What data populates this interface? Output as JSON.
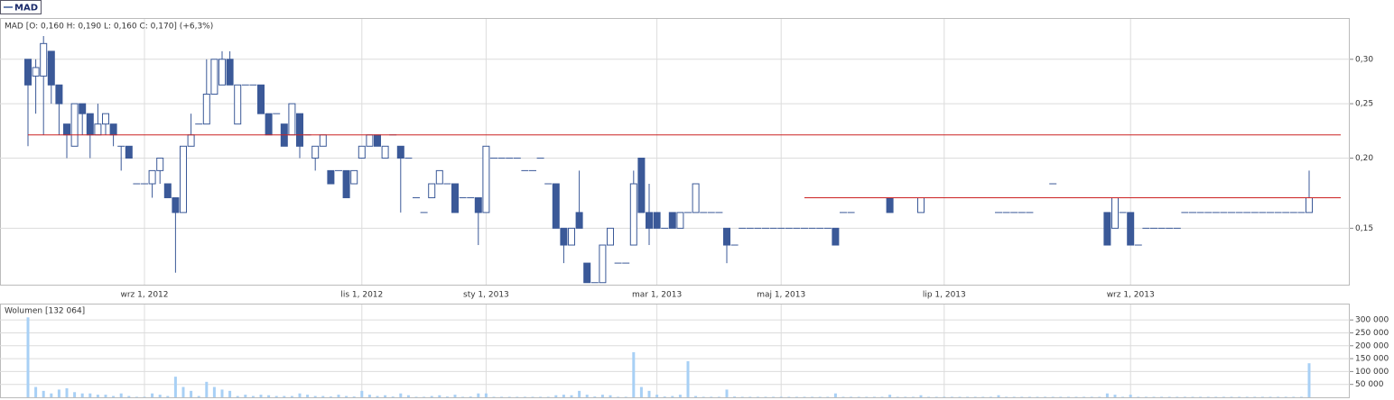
{
  "chart_data": {
    "type": "candlestick",
    "legend": "MAD",
    "title": "MAD [O: 0,160  H: 0,190  L: 0,160  C: 0,170] (+6,3%)",
    "volume_title": "Wolumen [132 064]",
    "log_scale": true,
    "grid": true,
    "up_color": "#ffffff",
    "down_color": "#3b5998",
    "edge_color": "#3b5998",
    "volume_color": "#a8d0f5",
    "categories": [
      null,
      null,
      null,
      null,
      null,
      null,
      null,
      null,
      null,
      null,
      null,
      null,
      null,
      null,
      null,
      "wrz 1, 2012",
      null,
      null,
      null,
      null,
      null,
      null,
      null,
      null,
      null,
      null,
      null,
      null,
      null,
      null,
      null,
      null,
      null,
      null,
      null,
      null,
      null,
      null,
      null,
      null,
      null,
      null,
      null,
      "lis 1, 2012",
      null,
      null,
      null,
      null,
      null,
      null,
      null,
      null,
      null,
      null,
      null,
      null,
      null,
      null,
      null,
      "sty 1, 2013",
      null,
      null,
      null,
      null,
      null,
      null,
      null,
      null,
      null,
      null,
      null,
      null,
      null,
      null,
      null,
      null,
      null,
      null,
      null,
      null,
      null,
      "mar 1, 2013",
      null,
      null,
      null,
      null,
      null,
      null,
      null,
      null,
      null,
      null,
      null,
      null,
      null,
      null,
      null,
      "maj 1, 2013",
      null,
      null,
      null,
      null,
      null,
      null,
      null,
      null,
      null,
      null,
      null,
      null,
      null,
      null,
      null,
      null,
      null,
      null,
      null,
      null,
      "lip 1, 2013",
      null,
      null,
      null,
      null,
      null,
      null,
      null,
      null,
      null,
      null,
      null,
      null,
      null,
      null,
      null,
      null,
      null,
      null,
      null,
      null,
      null,
      null,
      null,
      "wrz 1, 2013",
      null,
      null,
      null,
      null,
      null,
      null,
      null,
      null,
      null,
      null,
      null,
      null,
      null,
      null,
      null,
      null,
      null,
      null,
      null,
      null,
      null,
      null,
      null
    ],
    "open": [
      0.3,
      0.28,
      0.28,
      0.31,
      0.27,
      0.23,
      0.21,
      0.25,
      0.24,
      0.22,
      0.23,
      0.23,
      0.21,
      0.21,
      0.18,
      0.18,
      0.18,
      0.19,
      0.18,
      0.17,
      0.16,
      0.21,
      0.23,
      0.23,
      0.26,
      0.27,
      0.3,
      0.23,
      0.27,
      0.27,
      0.27,
      0.24,
      0.24,
      0.23,
      0.22,
      0.24,
      0.22,
      0.2,
      0.21,
      0.19,
      0.19,
      0.19,
      0.18,
      0.2,
      0.21,
      0.22,
      0.2,
      0.22,
      0.21,
      0.2,
      0.17,
      0.16,
      0.17,
      0.18,
      0.18,
      0.18,
      0.17,
      0.17,
      0.17,
      0.16,
      0.2,
      0.2,
      0.2,
      0.2,
      0.19,
      0.19,
      0.2,
      0.18,
      0.18,
      0.15,
      0.14,
      0.16,
      0.13,
      0.12,
      0.12,
      0.14,
      0.13,
      0.13,
      0.14,
      0.2,
      0.16,
      0.16,
      0.15,
      0.16,
      0.15,
      0.16,
      0.16,
      0.16,
      0.16,
      0.16,
      0.15,
      0.14,
      0.15,
      0.15,
      0.15,
      0.15,
      0.15,
      0.15,
      0.15,
      0.15,
      0.15,
      0.15,
      0.15,
      0.15,
      0.15,
      0.16,
      0.16,
      0.17,
      0.17,
      0.17,
      0.17,
      0.17,
      0.17,
      0.17,
      0.17,
      0.16,
      0.17,
      0.17,
      0.17,
      0.17,
      0.17,
      0.17,
      0.17,
      0.17,
      0.17,
      0.16,
      0.16,
      0.16,
      0.16,
      0.16,
      0.17,
      0.17,
      0.18,
      0.17,
      0.17,
      0.17,
      0.17,
      0.17,
      0.17,
      0.16,
      0.15,
      0.16,
      0.16,
      0.14,
      0.15,
      0.15,
      0.15,
      0.15,
      0.15,
      0.16,
      0.16,
      0.16,
      0.16,
      0.16,
      0.16,
      0.16,
      0.16,
      0.16,
      0.16,
      0.16,
      0.16,
      0.16,
      0.16,
      0.16,
      0.16,
      0.16
    ],
    "high": [
      0.3,
      0.3,
      0.33,
      0.31,
      0.27,
      0.23,
      0.25,
      0.25,
      0.24,
      0.25,
      0.24,
      0.23,
      0.21,
      0.21,
      0.18,
      0.18,
      0.19,
      0.2,
      0.18,
      0.17,
      0.21,
      0.24,
      0.23,
      0.3,
      0.3,
      0.31,
      0.31,
      0.27,
      0.27,
      0.27,
      0.27,
      0.24,
      0.24,
      0.23,
      0.25,
      0.24,
      0.22,
      0.21,
      0.22,
      0.19,
      0.19,
      0.19,
      0.19,
      0.21,
      0.22,
      0.22,
      0.21,
      0.22,
      0.21,
      0.2,
      0.17,
      0.16,
      0.18,
      0.19,
      0.18,
      0.18,
      0.17,
      0.17,
      0.17,
      0.21,
      0.2,
      0.2,
      0.2,
      0.2,
      0.19,
      0.19,
      0.2,
      0.18,
      0.18,
      0.15,
      0.15,
      0.19,
      0.13,
      0.12,
      0.14,
      0.15,
      0.13,
      0.13,
      0.19,
      0.2,
      0.18,
      0.16,
      0.15,
      0.16,
      0.16,
      0.16,
      0.18,
      0.16,
      0.16,
      0.16,
      0.15,
      0.14,
      0.15,
      0.15,
      0.15,
      0.15,
      0.15,
      0.15,
      0.15,
      0.15,
      0.15,
      0.15,
      0.15,
      0.15,
      0.15,
      0.16,
      0.16,
      0.17,
      0.17,
      0.17,
      0.17,
      0.17,
      0.17,
      0.17,
      0.17,
      0.17,
      0.17,
      0.17,
      0.17,
      0.17,
      0.17,
      0.17,
      0.17,
      0.17,
      0.17,
      0.16,
      0.16,
      0.16,
      0.16,
      0.16,
      0.17,
      0.17,
      0.18,
      0.17,
      0.17,
      0.17,
      0.17,
      0.17,
      0.17,
      0.16,
      0.17,
      0.16,
      0.16,
      0.14,
      0.15,
      0.15,
      0.15,
      0.15,
      0.15,
      0.16,
      0.16,
      0.16,
      0.16,
      0.16,
      0.16,
      0.16,
      0.16,
      0.16,
      0.16,
      0.16,
      0.16,
      0.16,
      0.16,
      0.16,
      0.16,
      0.19
    ],
    "low": [
      0.21,
      0.24,
      0.22,
      0.25,
      0.22,
      0.2,
      0.21,
      0.22,
      0.2,
      0.22,
      0.22,
      0.21,
      0.19,
      0.2,
      0.18,
      0.18,
      0.17,
      0.18,
      0.17,
      0.125,
      0.16,
      0.21,
      0.23,
      0.23,
      0.26,
      0.27,
      0.27,
      0.23,
      0.27,
      0.27,
      0.24,
      0.22,
      0.24,
      0.21,
      0.22,
      0.2,
      0.22,
      0.19,
      0.21,
      0.18,
      0.19,
      0.17,
      0.18,
      0.2,
      0.21,
      0.21,
      0.2,
      0.22,
      0.16,
      0.2,
      0.17,
      0.16,
      0.17,
      0.18,
      0.18,
      0.16,
      0.17,
      0.17,
      0.14,
      0.16,
      0.2,
      0.2,
      0.2,
      0.2,
      0.19,
      0.19,
      0.2,
      0.18,
      0.15,
      0.13,
      0.14,
      0.15,
      0.12,
      0.12,
      0.12,
      0.14,
      0.13,
      0.13,
      0.14,
      0.16,
      0.14,
      0.15,
      0.15,
      0.15,
      0.15,
      0.16,
      0.16,
      0.16,
      0.16,
      0.16,
      0.13,
      0.14,
      0.15,
      0.15,
      0.15,
      0.15,
      0.15,
      0.15,
      0.15,
      0.15,
      0.15,
      0.15,
      0.15,
      0.15,
      0.14,
      0.16,
      0.16,
      0.17,
      0.17,
      0.17,
      0.17,
      0.16,
      0.17,
      0.17,
      0.17,
      0.16,
      0.17,
      0.17,
      0.17,
      0.17,
      0.17,
      0.17,
      0.17,
      0.17,
      0.17,
      0.16,
      0.16,
      0.16,
      0.16,
      0.16,
      0.17,
      0.17,
      0.18,
      0.17,
      0.17,
      0.17,
      0.17,
      0.17,
      0.17,
      0.14,
      0.15,
      0.16,
      0.14,
      0.14,
      0.15,
      0.15,
      0.15,
      0.15,
      0.15,
      0.16,
      0.16,
      0.16,
      0.16,
      0.16,
      0.16,
      0.16,
      0.16,
      0.16,
      0.16,
      0.16,
      0.16,
      0.16,
      0.16,
      0.16,
      0.16,
      0.16
    ],
    "close": [
      0.27,
      0.29,
      0.32,
      0.27,
      0.25,
      0.22,
      0.25,
      0.24,
      0.22,
      0.23,
      0.24,
      0.22,
      0.21,
      0.2,
      0.18,
      0.18,
      0.19,
      0.2,
      0.17,
      0.16,
      0.21,
      0.22,
      0.23,
      0.26,
      0.3,
      0.3,
      0.27,
      0.27,
      0.27,
      0.27,
      0.24,
      0.22,
      0.24,
      0.21,
      0.25,
      0.21,
      0.22,
      0.21,
      0.22,
      0.18,
      0.19,
      0.17,
      0.19,
      0.21,
      0.22,
      0.21,
      0.21,
      0.22,
      0.2,
      0.2,
      0.17,
      0.16,
      0.18,
      0.19,
      0.18,
      0.16,
      0.17,
      0.17,
      0.16,
      0.21,
      0.2,
      0.2,
      0.2,
      0.2,
      0.19,
      0.19,
      0.2,
      0.18,
      0.15,
      0.14,
      0.15,
      0.15,
      0.12,
      0.12,
      0.14,
      0.15,
      0.13,
      0.13,
      0.18,
      0.16,
      0.15,
      0.15,
      0.15,
      0.15,
      0.16,
      0.16,
      0.18,
      0.16,
      0.16,
      0.16,
      0.14,
      0.14,
      0.15,
      0.15,
      0.15,
      0.15,
      0.15,
      0.15,
      0.15,
      0.15,
      0.15,
      0.15,
      0.15,
      0.15,
      0.14,
      0.16,
      0.16,
      0.17,
      0.17,
      0.17,
      0.17,
      0.16,
      0.17,
      0.17,
      0.17,
      0.17,
      0.17,
      0.17,
      0.17,
      0.17,
      0.17,
      0.17,
      0.17,
      0.17,
      0.17,
      0.16,
      0.16,
      0.16,
      0.16,
      0.16,
      0.17,
      0.17,
      0.18,
      0.17,
      0.17,
      0.17,
      0.17,
      0.17,
      0.17,
      0.14,
      0.17,
      0.16,
      0.14,
      0.14,
      0.15,
      0.15,
      0.15,
      0.15,
      0.15,
      0.16,
      0.16,
      0.16,
      0.16,
      0.16,
      0.16,
      0.16,
      0.16,
      0.16,
      0.16,
      0.16,
      0.16,
      0.16,
      0.16,
      0.16,
      0.16,
      0.17
    ],
    "volume": [
      310000,
      40000,
      25000,
      15000,
      30000,
      35000,
      20000,
      15000,
      15000,
      10000,
      10000,
      5000,
      15000,
      5000,
      2000,
      2000,
      15000,
      10000,
      5000,
      80000,
      40000,
      25000,
      5000,
      60000,
      40000,
      30000,
      25000,
      5000,
      10000,
      5000,
      10000,
      8000,
      5000,
      5000,
      5000,
      15000,
      10000,
      5000,
      5000,
      3000,
      10000,
      5000,
      3000,
      25000,
      10000,
      5000,
      8000,
      3000,
      15000,
      8000,
      2000,
      2000,
      5000,
      8000,
      3000,
      10000,
      2000,
      3000,
      15000,
      15000,
      2000,
      2000,
      2000,
      2000,
      2000,
      2000,
      2000,
      2000,
      8000,
      10000,
      8000,
      25000,
      10000,
      3000,
      10000,
      8000,
      2000,
      2000,
      175000,
      40000,
      25000,
      10000,
      3000,
      5000,
      10000,
      140000,
      5000,
      2000,
      2000,
      2000,
      30000,
      3000,
      2000,
      2000,
      2000,
      2000,
      2000,
      2000,
      2000,
      2000,
      2000,
      2000,
      2000,
      2000,
      15000,
      2000,
      2000,
      2000,
      2000,
      2000,
      2000,
      10000,
      2000,
      2000,
      2000,
      8000,
      2000,
      2000,
      2000,
      2000,
      2000,
      2000,
      2000,
      2000,
      2000,
      8000,
      2000,
      2000,
      2000,
      2000,
      2000,
      2000,
      2000,
      2000,
      2000,
      2000,
      2000,
      2000,
      2000,
      15000,
      10000,
      2000,
      10000,
      2000,
      2000,
      2000,
      2000,
      2000,
      2000,
      2000,
      2000,
      2000,
      2000,
      2000,
      2000,
      2000,
      2000,
      2000,
      2000,
      2000,
      2000,
      2000,
      2000,
      2000,
      2000,
      132064
    ],
    "ylim": [
      0.119,
      0.354
    ],
    "yticks": [
      {
        "value": 0.15,
        "label": "0,15"
      },
      {
        "value": 0.2,
        "label": "0,20"
      },
      {
        "value": 0.25,
        "label": "0,25"
      },
      {
        "value": 0.3,
        "label": "0,30"
      }
    ],
    "y2lim": [
      0,
      360000
    ],
    "y2ticks": [
      {
        "value": 50000,
        "label": "50 000"
      },
      {
        "value": 100000,
        "label": "100 000"
      },
      {
        "value": 150000,
        "label": "150 000"
      },
      {
        "value": 200000,
        "label": "200 000"
      },
      {
        "value": 250000,
        "label": "250 000"
      },
      {
        "value": 300000,
        "label": "300 000"
      }
    ],
    "hlines": [
      {
        "value": 0.22,
        "start": 0,
        "color": "#cc2222"
      },
      {
        "value": 0.17,
        "start": 100,
        "color": "#cc2222"
      }
    ]
  }
}
